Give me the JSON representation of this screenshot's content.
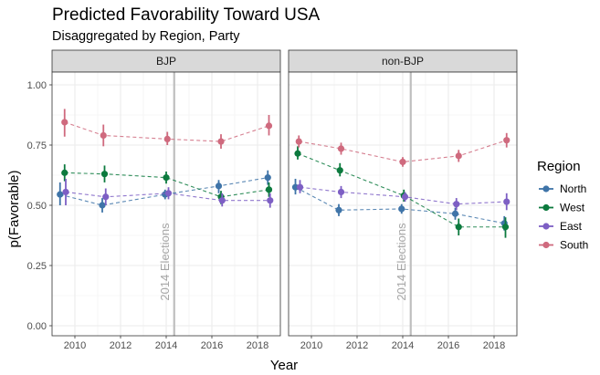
{
  "chart_data": {
    "type": "scatter",
    "title": "Predicted Favorability Toward USA",
    "subtitle": "Disaggregated by Region, Party",
    "xlabel": "Year",
    "ylabel": "p(Favorable)",
    "xlim": [
      2009.0,
      2019.0
    ],
    "ylim": [
      0.0,
      1.05
    ],
    "x_ticks": [
      2010,
      2012,
      2014,
      2016,
      2018
    ],
    "y_ticks": [
      0.0,
      0.25,
      0.5,
      0.75,
      1.0
    ],
    "y_tick_labels": [
      "0.00",
      "0.25",
      "0.50",
      "0.75",
      "1.00"
    ],
    "grid": true,
    "legend": {
      "title": "Region",
      "position": "right",
      "entries": [
        "North",
        "West",
        "East",
        "South"
      ]
    },
    "colors": {
      "North": "#3f74a8",
      "West": "#0c7a3e",
      "East": "#7d5fc4",
      "South": "#cf6a7e"
    },
    "vline": {
      "x": 2014.35,
      "label": "2014 Elections"
    },
    "panels": [
      {
        "label": "BJP",
        "series": [
          {
            "name": "North",
            "points": [
              {
                "x": 2009.35,
                "y": 0.545,
                "lo": 0.5,
                "hi": 0.595
              },
              {
                "x": 2011.2,
                "y": 0.5,
                "lo": 0.47,
                "hi": 0.53
              },
              {
                "x": 2013.95,
                "y": 0.545,
                "lo": 0.525,
                "hi": 0.565
              },
              {
                "x": 2016.3,
                "y": 0.58,
                "lo": 0.55,
                "hi": 0.605
              },
              {
                "x": 2018.45,
                "y": 0.615,
                "lo": 0.585,
                "hi": 0.645
              }
            ]
          },
          {
            "name": "West",
            "points": [
              {
                "x": 2009.55,
                "y": 0.635,
                "lo": 0.6,
                "hi": 0.67
              },
              {
                "x": 2011.3,
                "y": 0.63,
                "lo": 0.595,
                "hi": 0.665
              },
              {
                "x": 2014.0,
                "y": 0.615,
                "lo": 0.59,
                "hi": 0.64
              },
              {
                "x": 2016.4,
                "y": 0.535,
                "lo": 0.505,
                "hi": 0.56
              },
              {
                "x": 2018.5,
                "y": 0.565,
                "lo": 0.535,
                "hi": 0.595
              }
            ]
          },
          {
            "name": "East",
            "points": [
              {
                "x": 2009.6,
                "y": 0.555,
                "lo": 0.5,
                "hi": 0.61
              },
              {
                "x": 2011.35,
                "y": 0.535,
                "lo": 0.5,
                "hi": 0.57
              },
              {
                "x": 2014.1,
                "y": 0.55,
                "lo": 0.525,
                "hi": 0.575
              },
              {
                "x": 2016.45,
                "y": 0.52,
                "lo": 0.495,
                "hi": 0.55
              },
              {
                "x": 2018.55,
                "y": 0.52,
                "lo": 0.49,
                "hi": 0.55
              }
            ]
          },
          {
            "name": "South",
            "points": [
              {
                "x": 2009.55,
                "y": 0.845,
                "lo": 0.785,
                "hi": 0.9
              },
              {
                "x": 2011.25,
                "y": 0.79,
                "lo": 0.745,
                "hi": 0.835
              },
              {
                "x": 2014.05,
                "y": 0.775,
                "lo": 0.75,
                "hi": 0.805
              },
              {
                "x": 2016.4,
                "y": 0.765,
                "lo": 0.735,
                "hi": 0.795
              },
              {
                "x": 2018.5,
                "y": 0.83,
                "lo": 0.79,
                "hi": 0.875
              }
            ]
          }
        ]
      },
      {
        "label": "non-BJP",
        "series": [
          {
            "name": "North",
            "points": [
              {
                "x": 2009.3,
                "y": 0.575,
                "lo": 0.545,
                "hi": 0.61
              },
              {
                "x": 2011.2,
                "y": 0.48,
                "lo": 0.455,
                "hi": 0.505
              },
              {
                "x": 2013.95,
                "y": 0.485,
                "lo": 0.465,
                "hi": 0.505
              },
              {
                "x": 2016.3,
                "y": 0.465,
                "lo": 0.44,
                "hi": 0.49
              },
              {
                "x": 2018.45,
                "y": 0.425,
                "lo": 0.395,
                "hi": 0.455
              }
            ]
          },
          {
            "name": "West",
            "points": [
              {
                "x": 2009.4,
                "y": 0.715,
                "lo": 0.69,
                "hi": 0.745
              },
              {
                "x": 2011.25,
                "y": 0.645,
                "lo": 0.62,
                "hi": 0.675
              },
              {
                "x": 2014.05,
                "y": 0.54,
                "lo": 0.515,
                "hi": 0.565
              },
              {
                "x": 2016.45,
                "y": 0.41,
                "lo": 0.375,
                "hi": 0.445
              },
              {
                "x": 2018.5,
                "y": 0.41,
                "lo": 0.365,
                "hi": 0.45
              }
            ]
          },
          {
            "name": "East",
            "points": [
              {
                "x": 2009.5,
                "y": 0.575,
                "lo": 0.55,
                "hi": 0.605
              },
              {
                "x": 2011.3,
                "y": 0.555,
                "lo": 0.53,
                "hi": 0.58
              },
              {
                "x": 2014.1,
                "y": 0.535,
                "lo": 0.515,
                "hi": 0.555
              },
              {
                "x": 2016.35,
                "y": 0.505,
                "lo": 0.48,
                "hi": 0.53
              },
              {
                "x": 2018.55,
                "y": 0.515,
                "lo": 0.48,
                "hi": 0.55
              }
            ]
          },
          {
            "name": "South",
            "points": [
              {
                "x": 2009.45,
                "y": 0.765,
                "lo": 0.74,
                "hi": 0.79
              },
              {
                "x": 2011.3,
                "y": 0.735,
                "lo": 0.71,
                "hi": 0.76
              },
              {
                "x": 2014.0,
                "y": 0.68,
                "lo": 0.66,
                "hi": 0.7
              },
              {
                "x": 2016.45,
                "y": 0.705,
                "lo": 0.68,
                "hi": 0.73
              },
              {
                "x": 2018.55,
                "y": 0.77,
                "lo": 0.74,
                "hi": 0.8
              }
            ]
          }
        ]
      }
    ]
  }
}
